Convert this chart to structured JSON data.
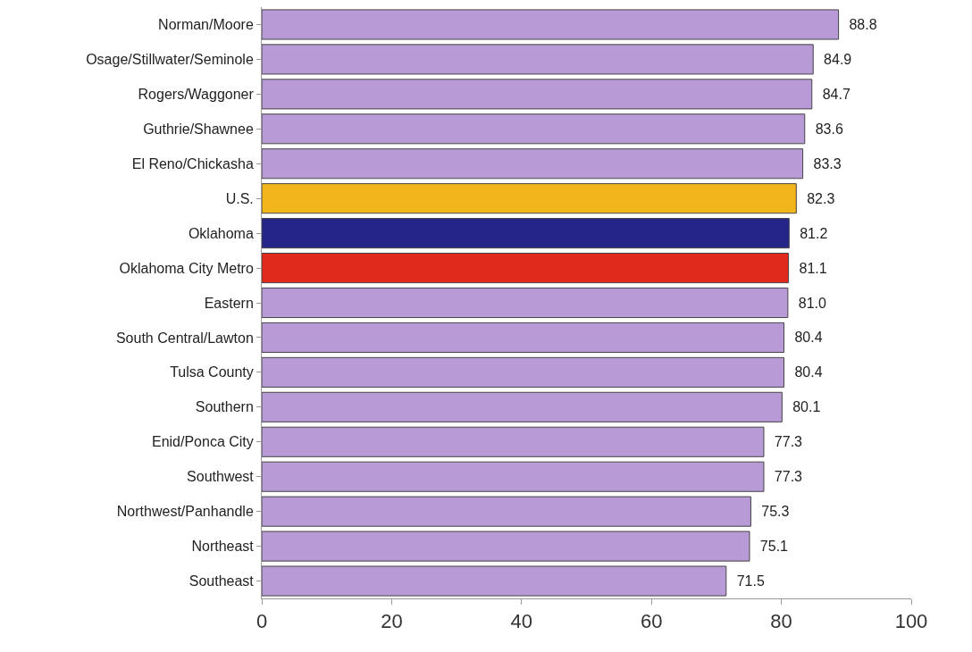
{
  "chart_data": {
    "type": "bar",
    "orientation": "horizontal",
    "categories": [
      "Norman/Moore",
      "Osage/Stillwater/Seminole",
      "Rogers/Waggoner",
      "Guthrie/Shawnee",
      "El Reno/Chickasha",
      "U.S.",
      "Oklahoma",
      "Oklahoma City Metro",
      "Eastern",
      "South Central/Lawton",
      "Tulsa County",
      "Southern",
      "Enid/Ponca City",
      "Southwest",
      "Northwest/Panhandle",
      "Northeast",
      "Southeast"
    ],
    "values": [
      88.8,
      84.9,
      84.7,
      83.6,
      83.3,
      82.3,
      81.2,
      81.1,
      81.0,
      80.4,
      80.4,
      80.1,
      77.3,
      77.3,
      75.3,
      75.1,
      71.5
    ],
    "colors": [
      "#b89ad6",
      "#b89ad6",
      "#b89ad6",
      "#b89ad6",
      "#b89ad6",
      "#f2b61c",
      "#252588",
      "#e02b1c",
      "#b89ad6",
      "#b89ad6",
      "#b89ad6",
      "#b89ad6",
      "#b89ad6",
      "#b89ad6",
      "#b89ad6",
      "#b89ad6",
      "#b89ad6"
    ],
    "value_labels": [
      "88.8",
      "84.9",
      "84.7",
      "83.6",
      "83.3",
      "82.3",
      "81.2",
      "81.1",
      "81.0",
      "80.4",
      "80.4",
      "80.1",
      "77.3",
      "77.3",
      "75.3",
      "75.1",
      "71.5"
    ],
    "xlim": [
      0,
      100
    ],
    "xticks": [
      0,
      20,
      40,
      60,
      80,
      100
    ],
    "legend": false
  }
}
